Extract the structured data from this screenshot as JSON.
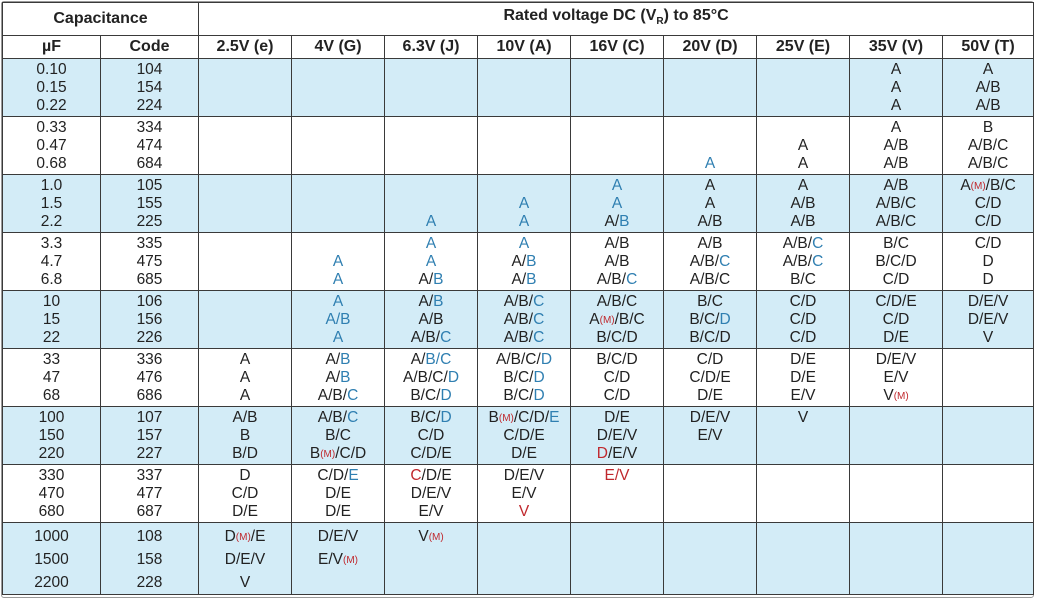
{
  "header": {
    "capacitance": "Capacitance",
    "rated_voltage_prefix": "Rated voltage DC (V",
    "rated_voltage_sub": "R",
    "rated_voltage_suffix": ") to 85°C",
    "uf": "µF",
    "code": "Code",
    "voltages": [
      "2.5V (e)",
      "4V (G)",
      "6.3V (J)",
      "10V (A)",
      "16V (C)",
      "20V (D)",
      "25V (E)",
      "35V (V)",
      "50V (T)"
    ]
  },
  "legend_colors": {
    "text": "#222222",
    "blue": "#2f7fb1",
    "red": "#c0282d",
    "band": "#d3ecf7"
  },
  "groups": [
    {
      "uf": [
        "0.10",
        "0.15",
        "0.22"
      ],
      "code": [
        "104",
        "154",
        "224"
      ],
      "cells": [
        [],
        [],
        [],
        [],
        [],
        [],
        [],
        [
          [
            {
              "t": "A"
            }
          ],
          [
            {
              "t": "A"
            }
          ],
          [
            {
              "t": "A"
            }
          ]
        ],
        [
          [
            {
              "t": "A"
            }
          ],
          [
            {
              "t": "A/B"
            }
          ],
          [
            {
              "t": "A/B"
            }
          ]
        ]
      ]
    },
    {
      "uf": [
        "0.33",
        "0.47",
        "0.68"
      ],
      "code": [
        "334",
        "474",
        "684"
      ],
      "cells": [
        [],
        [],
        [],
        [],
        [],
        [
          [],
          [],
          [
            {
              "t": "A",
              "c": "b"
            }
          ]
        ],
        [
          [],
          [
            {
              "t": "A"
            }
          ],
          [
            {
              "t": "A"
            }
          ]
        ],
        [
          [
            {
              "t": "A"
            }
          ],
          [
            {
              "t": "A/B"
            }
          ],
          [
            {
              "t": "A/B"
            }
          ]
        ],
        [
          [
            {
              "t": "B"
            }
          ],
          [
            {
              "t": "A/B/C"
            }
          ],
          [
            {
              "t": "A/B/C"
            }
          ]
        ]
      ]
    },
    {
      "uf": [
        "1.0",
        "1.5",
        "2.2"
      ],
      "code": [
        "105",
        "155",
        "225"
      ],
      "cells": [
        [],
        [],
        [
          [],
          [],
          [
            {
              "t": "A",
              "c": "b"
            }
          ]
        ],
        [
          [],
          [
            {
              "t": "A",
              "c": "b"
            }
          ],
          [
            {
              "t": "A",
              "c": "b"
            }
          ]
        ],
        [
          [
            {
              "t": "A",
              "c": "b"
            }
          ],
          [
            {
              "t": "A",
              "c": "b"
            }
          ],
          [
            {
              "t": "A/"
            },
            {
              "t": "B",
              "c": "b"
            }
          ]
        ],
        [
          [
            {
              "t": "A"
            }
          ],
          [
            {
              "t": "A"
            }
          ],
          [
            {
              "t": "A/B"
            }
          ]
        ],
        [
          [
            {
              "t": "A"
            }
          ],
          [
            {
              "t": "A/B"
            }
          ],
          [
            {
              "t": "A/B"
            }
          ]
        ],
        [
          [
            {
              "t": "A/B"
            }
          ],
          [
            {
              "t": "A/B/C"
            }
          ],
          [
            {
              "t": "A/B/C"
            }
          ]
        ],
        [
          [
            {
              "t": "A"
            },
            {
              "t": "(M)",
              "c": "r",
              "m": 1
            },
            {
              "t": "/B/C"
            }
          ],
          [
            {
              "t": "C/D"
            }
          ],
          [
            {
              "t": "C/D"
            }
          ]
        ]
      ]
    },
    {
      "uf": [
        "3.3",
        "4.7",
        "6.8"
      ],
      "code": [
        "335",
        "475",
        "685"
      ],
      "cells": [
        [],
        [
          [],
          [
            {
              "t": "A",
              "c": "b"
            }
          ],
          [
            {
              "t": "A",
              "c": "b"
            }
          ]
        ],
        [
          [
            {
              "t": "A",
              "c": "b"
            }
          ],
          [
            {
              "t": "A",
              "c": "b"
            }
          ],
          [
            {
              "t": "A/"
            },
            {
              "t": "B",
              "c": "b"
            }
          ]
        ],
        [
          [
            {
              "t": "A",
              "c": "b"
            }
          ],
          [
            {
              "t": "A/"
            },
            {
              "t": "B",
              "c": "b"
            }
          ],
          [
            {
              "t": "A/"
            },
            {
              "t": "B",
              "c": "b"
            }
          ]
        ],
        [
          [
            {
              "t": "A/B"
            }
          ],
          [
            {
              "t": "A/B"
            }
          ],
          [
            {
              "t": "A/B/"
            },
            {
              "t": "C",
              "c": "b"
            }
          ]
        ],
        [
          [
            {
              "t": "A/B"
            }
          ],
          [
            {
              "t": "A/B/"
            },
            {
              "t": "C",
              "c": "b"
            }
          ],
          [
            {
              "t": "A/B/C"
            }
          ]
        ],
        [
          [
            {
              "t": "A/B/"
            },
            {
              "t": "C",
              "c": "b"
            }
          ],
          [
            {
              "t": "A/B/"
            },
            {
              "t": "C",
              "c": "b"
            }
          ],
          [
            {
              "t": "B/C"
            }
          ]
        ],
        [
          [
            {
              "t": "B/C"
            }
          ],
          [
            {
              "t": "B/C/D"
            }
          ],
          [
            {
              "t": "C/D"
            }
          ]
        ],
        [
          [
            {
              "t": "C/D"
            }
          ],
          [
            {
              "t": "D"
            }
          ],
          [
            {
              "t": "D"
            }
          ]
        ]
      ]
    },
    {
      "uf": [
        "10",
        "15",
        "22"
      ],
      "code": [
        "106",
        "156",
        "226"
      ],
      "cells": [
        [],
        [
          [
            {
              "t": "A",
              "c": "b"
            }
          ],
          [
            {
              "t": "A/B",
              "c": "b"
            }
          ],
          [
            {
              "t": "A",
              "c": "b"
            }
          ]
        ],
        [
          [
            {
              "t": "A/"
            },
            {
              "t": "B",
              "c": "b"
            }
          ],
          [
            {
              "t": "A/B"
            }
          ],
          [
            {
              "t": "A/B/"
            },
            {
              "t": "C",
              "c": "b"
            }
          ]
        ],
        [
          [
            {
              "t": "A/B/"
            },
            {
              "t": "C",
              "c": "b"
            }
          ],
          [
            {
              "t": "A/B/"
            },
            {
              "t": "C",
              "c": "b"
            }
          ],
          [
            {
              "t": "A/B/"
            },
            {
              "t": "C",
              "c": "b"
            }
          ]
        ],
        [
          [
            {
              "t": "A/B/C"
            }
          ],
          [
            {
              "t": "A"
            },
            {
              "t": "(M)",
              "c": "r",
              "m": 1
            },
            {
              "t": "/B/C"
            }
          ],
          [
            {
              "t": "B/C/D"
            }
          ]
        ],
        [
          [
            {
              "t": "B/C"
            }
          ],
          [
            {
              "t": "B/C/"
            },
            {
              "t": "D",
              "c": "b"
            }
          ],
          [
            {
              "t": "B/C/D"
            }
          ]
        ],
        [
          [
            {
              "t": "C/D"
            }
          ],
          [
            {
              "t": "C/D"
            }
          ],
          [
            {
              "t": "C/D"
            }
          ]
        ],
        [
          [
            {
              "t": "C/D/E"
            }
          ],
          [
            {
              "t": "C/D"
            }
          ],
          [
            {
              "t": "D/E"
            }
          ]
        ],
        [
          [
            {
              "t": "D/E/V"
            }
          ],
          [
            {
              "t": "D/E/V"
            }
          ],
          [
            {
              "t": "V"
            }
          ]
        ]
      ]
    },
    {
      "uf": [
        "33",
        "47",
        "68"
      ],
      "code": [
        "336",
        "476",
        "686"
      ],
      "cells": [
        [
          [
            {
              "t": "A"
            }
          ],
          [
            {
              "t": "A"
            }
          ],
          [
            {
              "t": "A"
            }
          ]
        ],
        [
          [
            {
              "t": "A/"
            },
            {
              "t": "B",
              "c": "b"
            }
          ],
          [
            {
              "t": "A/"
            },
            {
              "t": "B",
              "c": "b"
            }
          ],
          [
            {
              "t": "A/B/"
            },
            {
              "t": "C",
              "c": "b"
            }
          ]
        ],
        [
          [
            {
              "t": "A/"
            },
            {
              "t": "B/C",
              "c": "b"
            }
          ],
          [
            {
              "t": "A/B/C/"
            },
            {
              "t": "D",
              "c": "b"
            }
          ],
          [
            {
              "t": "B/C/"
            },
            {
              "t": "D",
              "c": "b"
            }
          ]
        ],
        [
          [
            {
              "t": "A/B/C/"
            },
            {
              "t": "D",
              "c": "b"
            }
          ],
          [
            {
              "t": "B/C/"
            },
            {
              "t": "D",
              "c": "b"
            }
          ],
          [
            {
              "t": "B/C/"
            },
            {
              "t": "D",
              "c": "b"
            }
          ]
        ],
        [
          [
            {
              "t": "B/C/D"
            }
          ],
          [
            {
              "t": "C/D"
            }
          ],
          [
            {
              "t": "C/D"
            }
          ]
        ],
        [
          [
            {
              "t": "C/D"
            }
          ],
          [
            {
              "t": "C/D/E"
            }
          ],
          [
            {
              "t": "D/E"
            }
          ]
        ],
        [
          [
            {
              "t": "D/E"
            }
          ],
          [
            {
              "t": "D/E"
            }
          ],
          [
            {
              "t": "E/V"
            }
          ]
        ],
        [
          [
            {
              "t": "D/E/V"
            }
          ],
          [
            {
              "t": "E/V"
            }
          ],
          [
            {
              "t": "V"
            },
            {
              "t": "(M)",
              "c": "r",
              "m": 1
            }
          ]
        ],
        []
      ]
    },
    {
      "uf": [
        "100",
        "150",
        "220"
      ],
      "code": [
        "107",
        "157",
        "227"
      ],
      "cells": [
        [
          [
            {
              "t": "A/B"
            }
          ],
          [
            {
              "t": "B"
            }
          ],
          [
            {
              "t": "B/D"
            }
          ]
        ],
        [
          [
            {
              "t": "A/B/"
            },
            {
              "t": "C",
              "c": "b"
            }
          ],
          [
            {
              "t": "B/C"
            }
          ],
          [
            {
              "t": "B"
            },
            {
              "t": "(M)",
              "c": "r",
              "m": 1
            },
            {
              "t": "/C/D"
            }
          ]
        ],
        [
          [
            {
              "t": "B/C/"
            },
            {
              "t": "D",
              "c": "b"
            }
          ],
          [
            {
              "t": "C/D"
            }
          ],
          [
            {
              "t": "C/D/E"
            }
          ]
        ],
        [
          [
            {
              "t": "B"
            },
            {
              "t": "(M)",
              "c": "r",
              "m": 1
            },
            {
              "t": "/C/D/"
            },
            {
              "t": "E",
              "c": "b"
            }
          ],
          [
            {
              "t": "C/D/E"
            }
          ],
          [
            {
              "t": "D/E"
            }
          ]
        ],
        [
          [
            {
              "t": "D/E"
            }
          ],
          [
            {
              "t": "D/E/V"
            }
          ],
          [
            {
              "t": "D",
              "c": "r"
            },
            {
              "t": "/E/V"
            }
          ]
        ],
        [
          [
            {
              "t": "D/E/V"
            }
          ],
          [
            {
              "t": "E/V"
            }
          ],
          []
        ],
        [
          [
            {
              "t": "V"
            }
          ],
          [],
          []
        ],
        [],
        []
      ]
    },
    {
      "uf": [
        "330",
        "470",
        "680"
      ],
      "code": [
        "337",
        "477",
        "687"
      ],
      "cells": [
        [
          [
            {
              "t": "D"
            }
          ],
          [
            {
              "t": "C/D"
            }
          ],
          [
            {
              "t": "D/E"
            }
          ]
        ],
        [
          [
            {
              "t": "C/D/"
            },
            {
              "t": "E",
              "c": "b"
            }
          ],
          [
            {
              "t": "D/E"
            }
          ],
          [
            {
              "t": "D/E"
            }
          ]
        ],
        [
          [
            {
              "t": "C",
              "c": "r"
            },
            {
              "t": "/D/E"
            }
          ],
          [
            {
              "t": "D/E/V"
            }
          ],
          [
            {
              "t": "E/V"
            }
          ]
        ],
        [
          [
            {
              "t": "D/E/V"
            }
          ],
          [
            {
              "t": "E/V"
            }
          ],
          [
            {
              "t": "V",
              "c": "r"
            }
          ]
        ],
        [
          [
            {
              "t": "E/V",
              "c": "r"
            }
          ],
          [],
          []
        ],
        [],
        [],
        [],
        []
      ]
    },
    {
      "big": true,
      "uf": [
        "1000",
        "1500",
        "2200"
      ],
      "code": [
        "108",
        "158",
        "228"
      ],
      "cells": [
        [
          [
            {
              "t": "D"
            },
            {
              "t": "(M)",
              "c": "r",
              "m": 1
            },
            {
              "t": "/E"
            }
          ],
          [
            {
              "t": "D/E/V"
            }
          ],
          [
            {
              "t": "V"
            }
          ]
        ],
        [
          [
            {
              "t": "D/E/V"
            }
          ],
          [
            {
              "t": "E/V"
            },
            {
              "t": "(M)",
              "c": "r",
              "m": 1
            }
          ],
          []
        ],
        [
          [
            {
              "t": "V"
            },
            {
              "t": "(M)",
              "c": "r",
              "m": 1
            }
          ],
          [],
          []
        ],
        [],
        [],
        [],
        [],
        [],
        []
      ]
    }
  ]
}
